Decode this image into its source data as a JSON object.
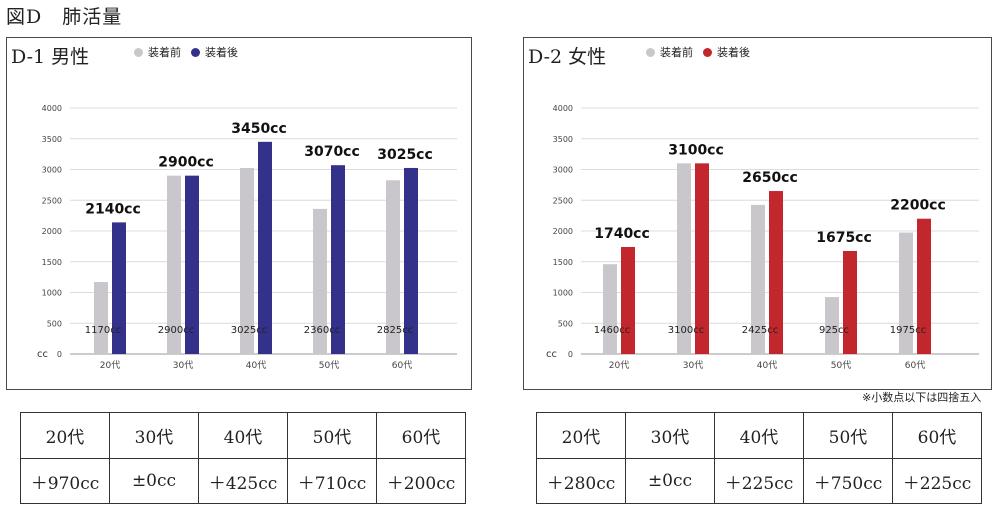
{
  "figure_title": "図D　肺活量",
  "legend": {
    "before": "装着前",
    "after": "装着後",
    "before_color": "#c9c7cc",
    "male_after_color": "#33318a",
    "female_after_color": "#c2272d"
  },
  "note": "※小数点以下は四捨五入",
  "chart_data": [
    {
      "type": "bar",
      "title": "D-1 男性",
      "categories": [
        "20代",
        "30代",
        "40代",
        "50代",
        "60代"
      ],
      "series": [
        {
          "name": "装着前",
          "values": [
            1170,
            2900,
            3025,
            2360,
            2825
          ]
        },
        {
          "name": "装着後",
          "values": [
            2140,
            2900,
            3450,
            3070,
            3025
          ]
        }
      ],
      "before_labels": [
        "1170cc",
        "2900cc",
        "3025cc",
        "2360cc",
        "2825cc"
      ],
      "after_labels": [
        "2140cc",
        "2900cc",
        "3450cc",
        "3070cc",
        "3025cc"
      ],
      "yticks": [
        "0",
        "500",
        "1000",
        "1500",
        "2000",
        "2500",
        "3000",
        "3500",
        "4000"
      ],
      "ylabel": "cc",
      "ylim": [
        0,
        4000
      ],
      "grid": true,
      "legend_position": "top"
    },
    {
      "type": "bar",
      "title": "D-2 女性",
      "categories": [
        "20代",
        "30代",
        "40代",
        "50代",
        "60代"
      ],
      "series": [
        {
          "name": "装着前",
          "values": [
            1460,
            3100,
            2425,
            925,
            1975
          ]
        },
        {
          "name": "装着後",
          "values": [
            1740,
            3100,
            2650,
            1675,
            2200
          ]
        }
      ],
      "before_labels": [
        "1460cc",
        "3100cc",
        "2425cc",
        "925cc",
        "1975cc"
      ],
      "after_labels": [
        "1740cc",
        "3100cc",
        "2650cc",
        "1675cc",
        "2200cc"
      ],
      "yticks": [
        "0",
        "500",
        "1000",
        "1500",
        "2000",
        "2500",
        "3000",
        "3500",
        "4000"
      ],
      "ylabel": "cc",
      "ylim": [
        0,
        4000
      ],
      "grid": true,
      "legend_position": "top"
    }
  ],
  "tables": {
    "male": {
      "headers": [
        "20代",
        "30代",
        "40代",
        "50代",
        "60代"
      ],
      "values": [
        "＋970cc",
        "±0cc",
        "＋425cc",
        "＋710cc",
        "＋200cc"
      ]
    },
    "female": {
      "headers": [
        "20代",
        "30代",
        "40代",
        "50代",
        "60代"
      ],
      "values": [
        "＋280cc",
        "±0cc",
        "＋225cc",
        "＋750cc",
        "＋225cc"
      ]
    }
  }
}
